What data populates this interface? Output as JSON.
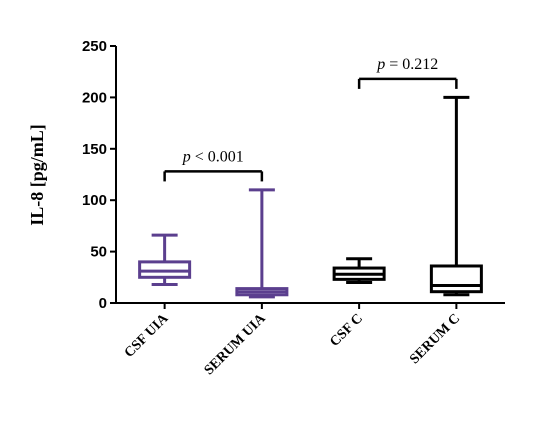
{
  "chart_data": {
    "type": "box",
    "ylabel": "IL-8 [pg/mL]",
    "ylim": [
      0,
      250
    ],
    "yticks": [
      0,
      50,
      100,
      150,
      200,
      250
    ],
    "categories": [
      "CSF UIA",
      "SERUM UIA",
      "CSF C",
      "SERUM C"
    ],
    "boxes": [
      {
        "category": "CSF UIA",
        "min": 18,
        "q1": 25,
        "median": 31,
        "q3": 40,
        "max": 66,
        "color": "#5b3f8e"
      },
      {
        "category": "SERUM UIA",
        "min": 6,
        "q1": 8,
        "median": 11,
        "q3": 14,
        "max": 110,
        "color": "#5b3f8e"
      },
      {
        "category": "CSF C",
        "min": 20,
        "q1": 23,
        "median": 28,
        "q3": 34,
        "max": 43,
        "color": "#000000"
      },
      {
        "category": "SERUM C",
        "min": 8,
        "q1": 11,
        "median": 17,
        "q3": 36,
        "max": 200,
        "color": "#000000"
      }
    ],
    "annotations": [
      {
        "from": "CSF UIA",
        "to": "SERUM UIA",
        "y": 128,
        "label": "p < 0.001"
      },
      {
        "from": "CSF C",
        "to": "SERUM C",
        "y": 218,
        "label": "p = 0.212"
      }
    ]
  }
}
